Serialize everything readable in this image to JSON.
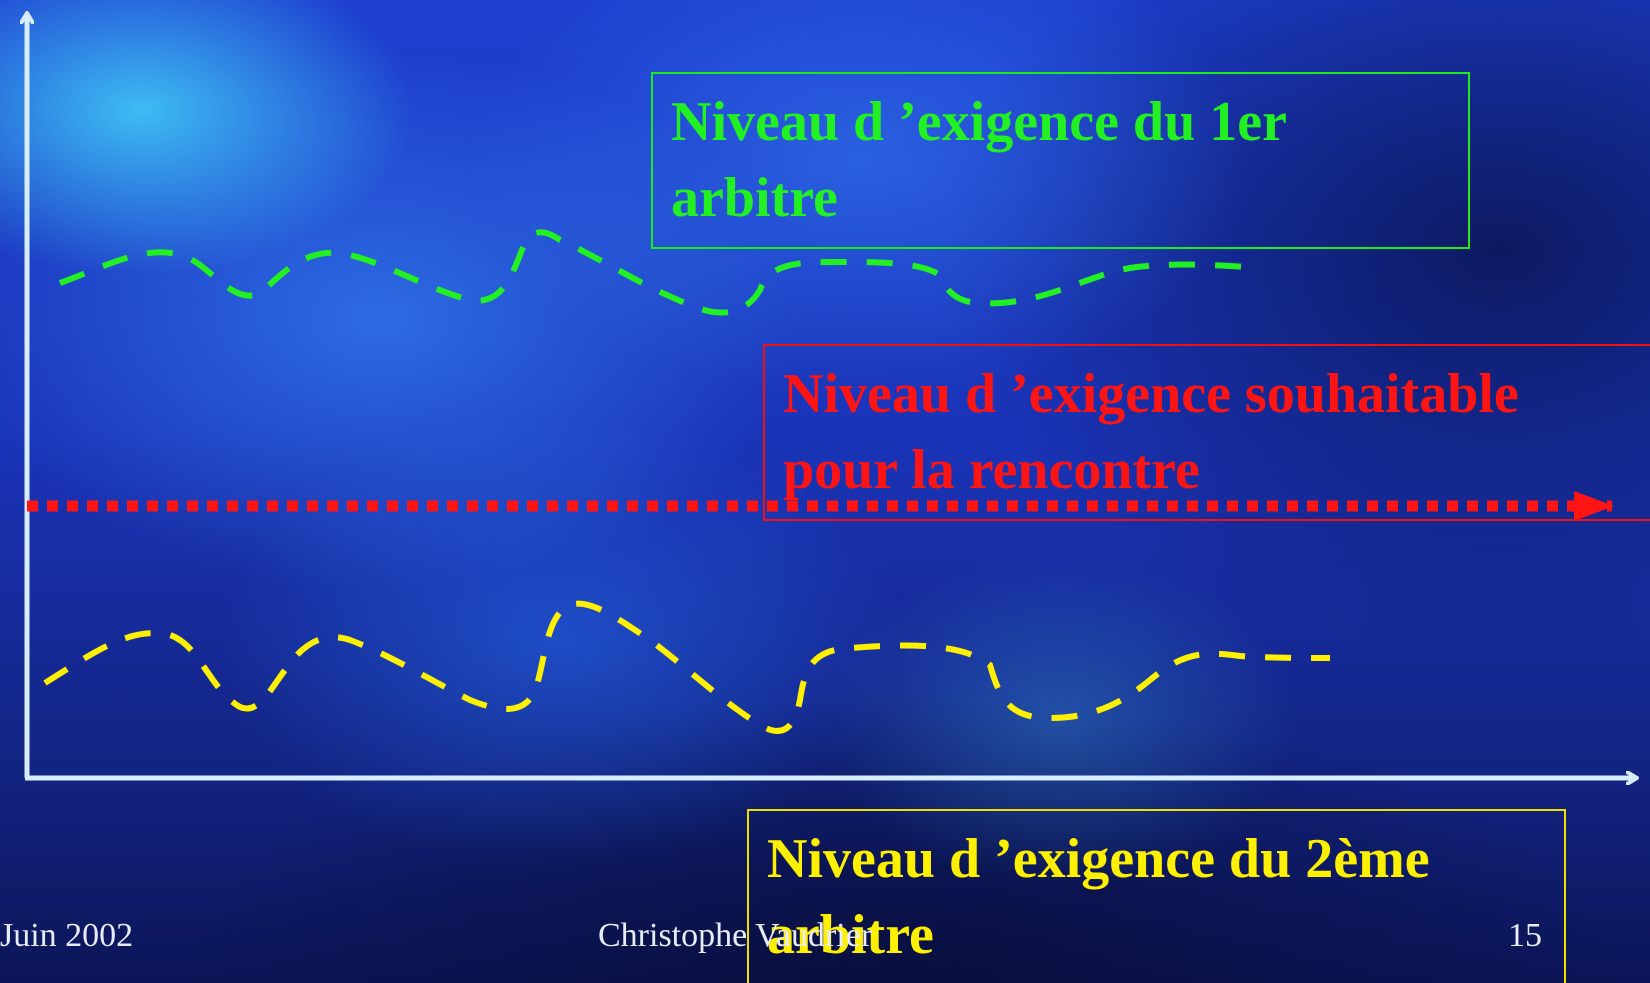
{
  "labels": {
    "first_referee": "Niveau d ’exigence du 1er arbitre",
    "desirable": "Niveau d ’exigence souhaitable pour la rencontre",
    "second_referee": "Niveau d ’exigence du 2ème arbitre"
  },
  "footer": {
    "date": "Juin 2002",
    "author": "Christophe Vaudrier",
    "page": "15"
  },
  "colors": {
    "first_referee": "#22f022",
    "desirable": "#ff1414",
    "second_referee": "#fff000",
    "axes": "#d8ecff"
  }
}
